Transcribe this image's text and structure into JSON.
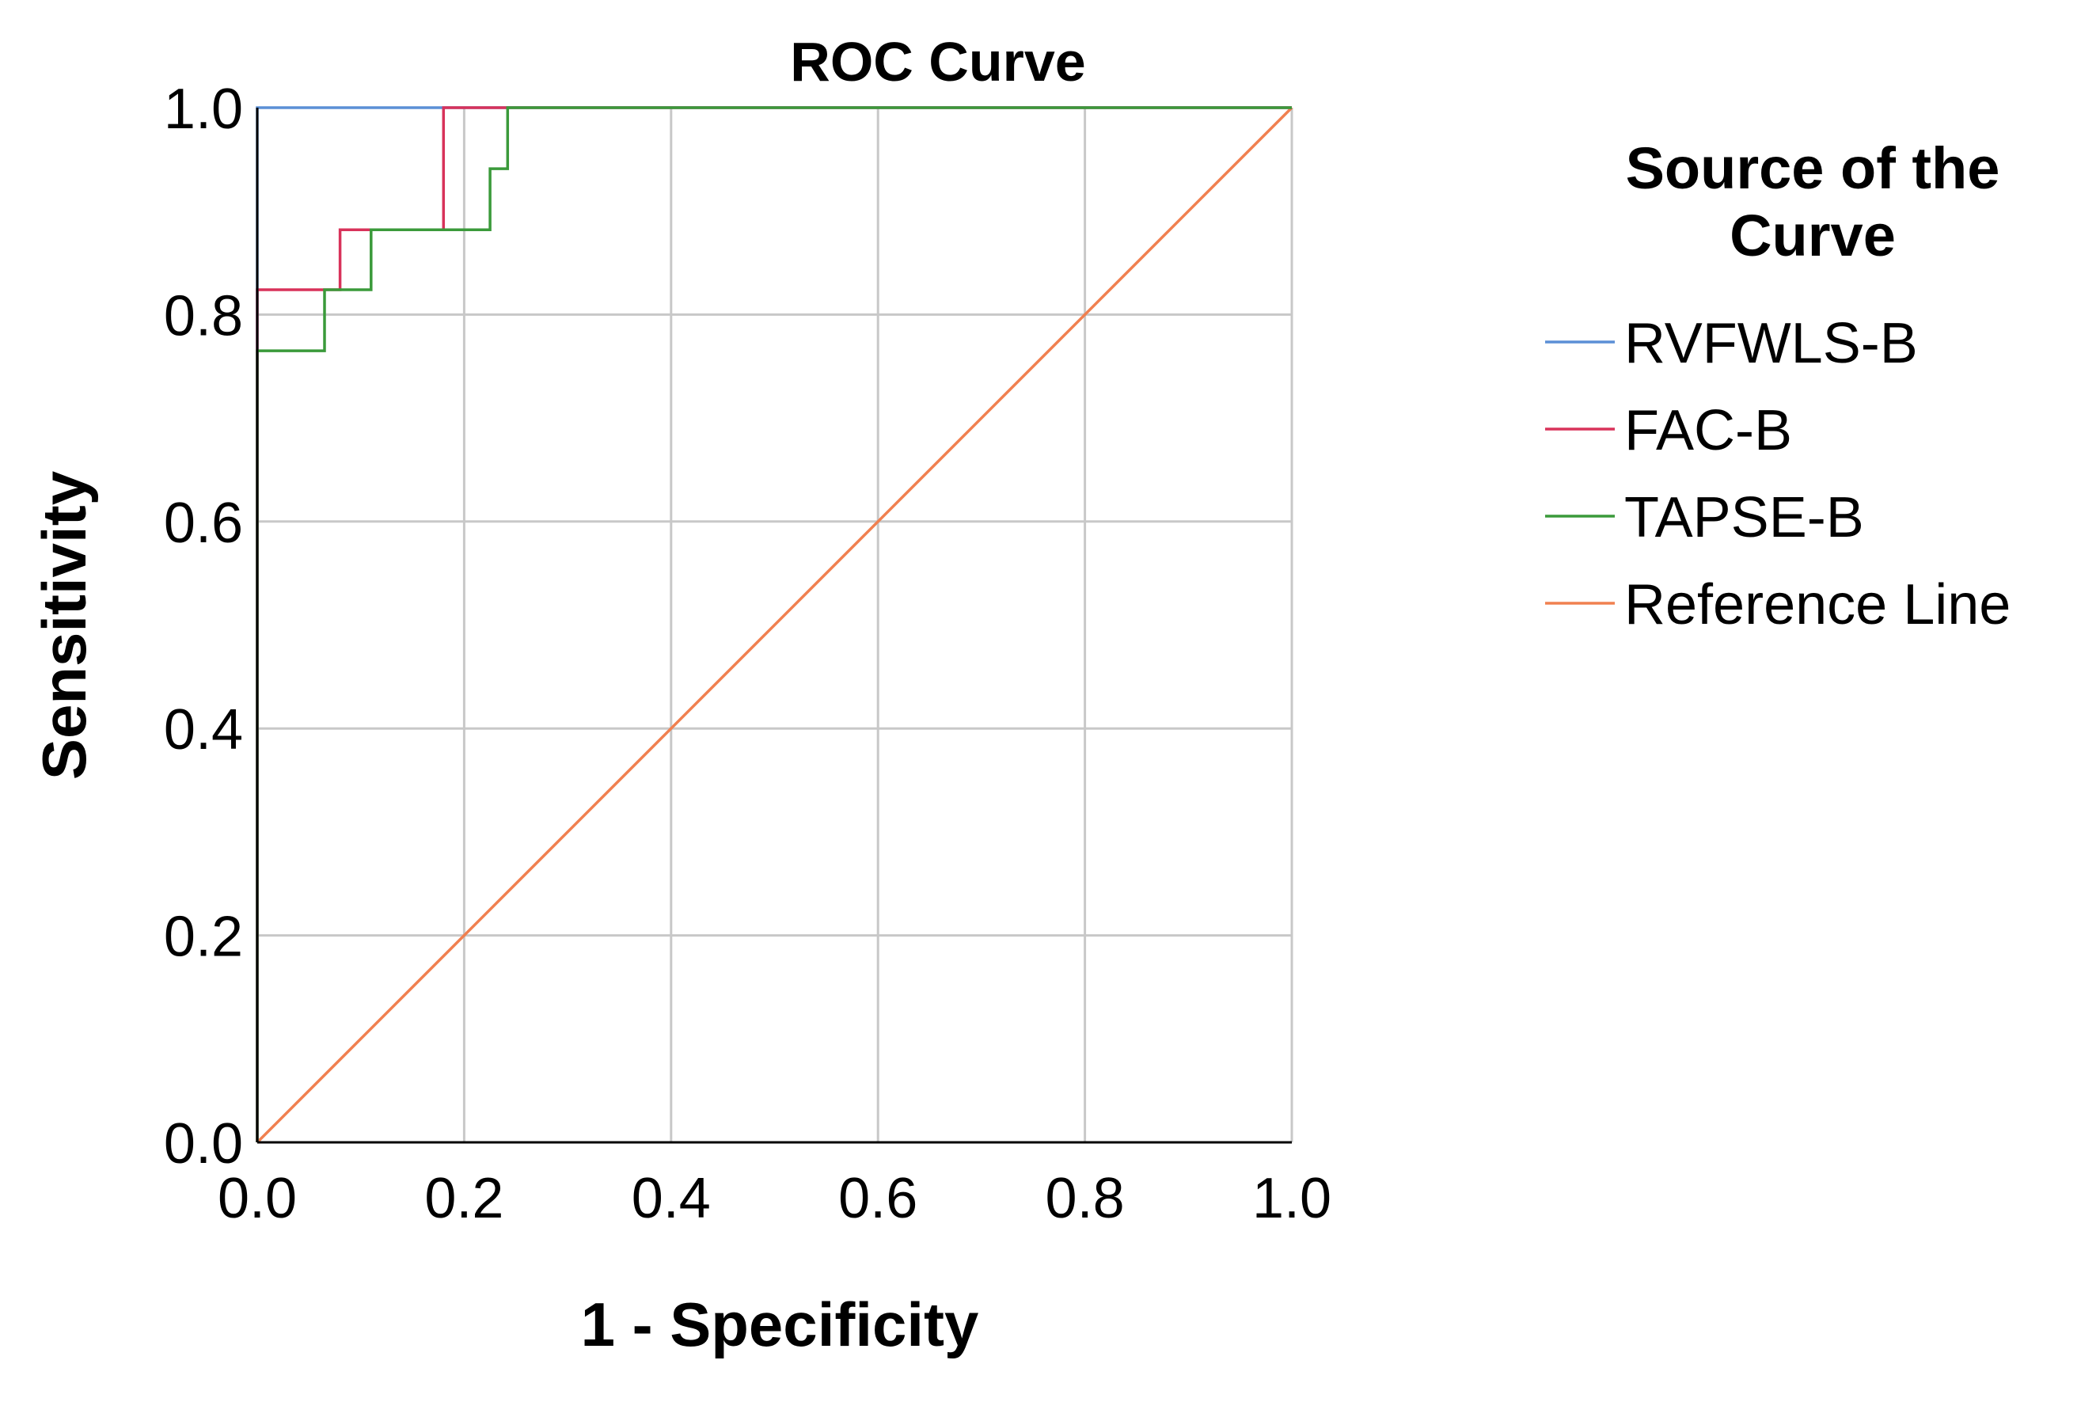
{
  "chart_data": {
    "type": "line",
    "title": "ROC Curve",
    "xlabel": "1 - Specificity",
    "ylabel": "Sensitivity",
    "xlim": [
      0,
      1
    ],
    "ylim": [
      0,
      1
    ],
    "grid": true,
    "x_ticks": [
      "0.0",
      "0.2",
      "0.4",
      "0.6",
      "0.8",
      "1.0"
    ],
    "y_ticks": [
      "0.0",
      "0.2",
      "0.4",
      "0.6",
      "0.8",
      "1.0"
    ],
    "legend": {
      "title_lines": [
        "Source of the",
        "Curve"
      ],
      "placement": "right"
    },
    "series": [
      {
        "name": "RVFWLS-B",
        "color": "#5b8fd6",
        "points": [
          [
            0,
            0
          ],
          [
            0,
            1.0
          ],
          [
            1.0,
            1.0
          ]
        ]
      },
      {
        "name": "FAC-B",
        "color": "#d8325a",
        "points": [
          [
            0,
            0
          ],
          [
            0,
            0.765
          ],
          [
            0,
            0.824
          ],
          [
            0.08,
            0.824
          ],
          [
            0.08,
            0.882
          ],
          [
            0.18,
            0.882
          ],
          [
            0.18,
            1.0
          ],
          [
            1.0,
            1.0
          ]
        ]
      },
      {
        "name": "TAPSE-B",
        "color": "#3a9a3a",
        "points": [
          [
            0,
            0
          ],
          [
            0,
            0.765
          ],
          [
            0.065,
            0.765
          ],
          [
            0.065,
            0.824
          ],
          [
            0.11,
            0.824
          ],
          [
            0.11,
            0.882
          ],
          [
            0.225,
            0.882
          ],
          [
            0.225,
            0.941
          ],
          [
            0.242,
            0.941
          ],
          [
            0.242,
            1.0
          ],
          [
            1.0,
            1.0
          ]
        ]
      },
      {
        "name": "Reference Line",
        "color": "#f08050",
        "points": [
          [
            0,
            0
          ],
          [
            1.0,
            1.0
          ]
        ]
      }
    ]
  }
}
